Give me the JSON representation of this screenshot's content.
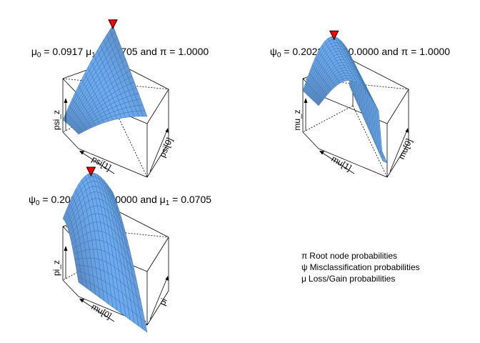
{
  "chart_data": [
    {
      "type": "surface3d",
      "title": "μ₀ = 0.0917 μ₁ = 0.0705 and π = 1.0000",
      "title_parts": {
        "a": "μ",
        "a_sub": "0",
        "a_val": " = 0.0917 ",
        "b": "μ",
        "b_sub": "1",
        "b_val": " = 0.0705 and ",
        "c": "π",
        "c_val": " = 1.0000"
      },
      "xlabel": "psi[1]",
      "ylabel": "psi[0]",
      "zlabel": "psi_z",
      "surface": "saddle-ridge rising to the back-right corner",
      "optimum_marker": "red downward triangle at the surface maximum",
      "surface_color": "#4682b4",
      "marker_color": "#ff0000"
    },
    {
      "type": "surface3d",
      "title": "ψ₀ = 0.2022 ψ₁ = 0.0000 and π = 1.0000",
      "title_parts": {
        "a": "ψ",
        "a_sub": "0",
        "a_val": " = 0.2022 ",
        "b": "ψ",
        "b_sub": "1",
        "b_val": " = 0.0000 and ",
        "c": "π",
        "c_val": " = 1.0000"
      },
      "xlabel": "mu[1]",
      "ylabel": "mu[0]",
      "zlabel": "mu_z",
      "surface": "arched ridge dropping sharply at the right edge",
      "optimum_marker": "red downward triangle at the surface maximum",
      "surface_color": "#4682b4",
      "marker_color": "#ff0000"
    },
    {
      "type": "surface3d",
      "title": "ψ₀ = 0.2022 ψ₁ = 0.0000 and μ₁ = 0.0705",
      "title_parts": {
        "a": "ψ",
        "a_sub": "0",
        "a_val": " = 0.2022 ",
        "b": "ψ",
        "b_sub": "1",
        "b_val": " = 0.0000 and ",
        "c": "μ",
        "c_sub": "1",
        "c_val": " = 0.0705"
      },
      "xlabel": "mu[0]",
      "ylabel": "pi",
      "zlabel": "pi_z",
      "surface": "dome arched along the back, sagging at the front corner",
      "optimum_marker": "red downward triangle at the surface maximum",
      "surface_color": "#4682b4",
      "marker_color": "#ff0000"
    }
  ],
  "legend": [
    {
      "symbol": "π",
      "text": "Root node probabilities"
    },
    {
      "symbol": "ψ",
      "text": "Misclassification probabilities"
    },
    {
      "symbol": "μ",
      "text": "Loss/Gain probabilities"
    }
  ]
}
